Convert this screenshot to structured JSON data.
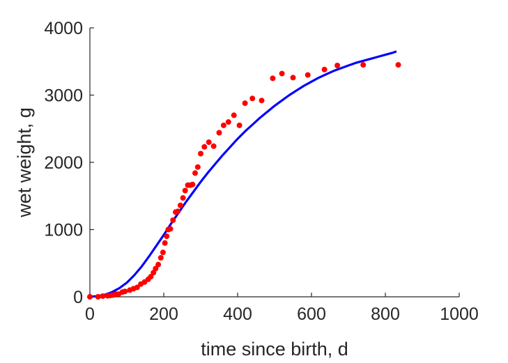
{
  "chart_data": {
    "type": "scatter",
    "title": "",
    "xlabel": "time since birth, d",
    "ylabel": "wet weight, g",
    "xlim": [
      0,
      1000
    ],
    "ylim": [
      0,
      4000
    ],
    "xticks": [
      0,
      200,
      400,
      600,
      800,
      1000
    ],
    "yticks": [
      0,
      1000,
      2000,
      3000,
      4000
    ],
    "xtick_labels": [
      "0",
      "200",
      "400",
      "600",
      "800",
      "1000"
    ],
    "ytick_labels": [
      "0",
      "1000",
      "2000",
      "3000",
      "4000"
    ],
    "grid": false,
    "legend": "none",
    "series": [
      {
        "kind": "points",
        "color": "#ff0000",
        "x": [
          0,
          22,
          35,
          48,
          55,
          62,
          70,
          78,
          88,
          95,
          108,
          118,
          128,
          138,
          148,
          158,
          165,
          172,
          178,
          185,
          192,
          198,
          203,
          208,
          212,
          218,
          225,
          232,
          238,
          245,
          252,
          258,
          265,
          272,
          278,
          285,
          292,
          300,
          310,
          322,
          335,
          350,
          362,
          375,
          390,
          405,
          420,
          440,
          465,
          495,
          520,
          550,
          590,
          635,
          670,
          740,
          835
        ],
        "y": [
          0,
          0,
          10,
          15,
          20,
          25,
          40,
          40,
          70,
          80,
          100,
          120,
          140,
          190,
          220,
          260,
          300,
          360,
          420,
          480,
          580,
          660,
          800,
          900,
          1000,
          1010,
          1140,
          1260,
          1270,
          1360,
          1470,
          1580,
          1660,
          1660,
          1670,
          1840,
          1930,
          2130,
          2230,
          2300,
          2240,
          2440,
          2550,
          2600,
          2700,
          2550,
          2880,
          2950,
          2920,
          3250,
          3320,
          3260,
          3300,
          3380,
          3440,
          3450,
          3450
        ]
      },
      {
        "kind": "curve",
        "color": "#0000ff",
        "x": [
          0,
          20,
          40,
          60,
          80,
          100,
          120,
          140,
          160,
          180,
          200,
          220,
          240,
          260,
          280,
          300,
          320,
          340,
          360,
          380,
          400,
          420,
          440,
          460,
          480,
          500,
          520,
          540,
          560,
          580,
          600,
          620,
          640,
          660,
          680,
          700,
          720,
          740,
          760,
          780,
          800,
          820,
          830
        ],
        "y": [
          0,
          10,
          30,
          70,
          130,
          210,
          320,
          450,
          600,
          760,
          920,
          1090,
          1250,
          1410,
          1560,
          1710,
          1850,
          1980,
          2110,
          2230,
          2350,
          2460,
          2560,
          2660,
          2750,
          2840,
          2920,
          3000,
          3070,
          3140,
          3200,
          3260,
          3310,
          3360,
          3400,
          3440,
          3480,
          3510,
          3540,
          3570,
          3600,
          3630,
          3650
        ]
      }
    ]
  }
}
